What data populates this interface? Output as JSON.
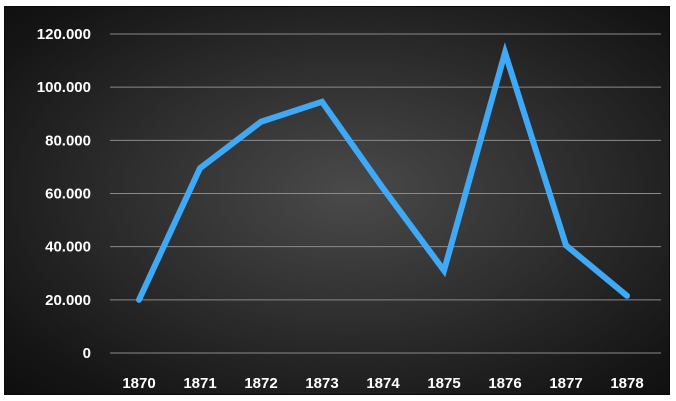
{
  "chart_data": {
    "type": "line",
    "title": "",
    "xlabel": "",
    "ylabel": "",
    "x": [
      "1870",
      "1871",
      "1872",
      "1873",
      "1874",
      "1875",
      "1876",
      "1877",
      "1878"
    ],
    "series": [
      {
        "values": [
          20000,
          69500,
          87000,
          94500,
          62000,
          31000,
          113000,
          40500,
          21500
        ],
        "color": "#3fa9f5"
      }
    ],
    "yticks": [
      0,
      20000,
      40000,
      60000,
      80000,
      100000,
      120000
    ],
    "ytick_labels": [
      "0",
      "20.000",
      "40.000",
      "60.000",
      "80.000",
      "100.000",
      "120.000"
    ],
    "ylim": [
      0,
      120000
    ],
    "grid": true,
    "legend": "none",
    "background": "#2e2e2e",
    "text_color": "#ffffff"
  }
}
